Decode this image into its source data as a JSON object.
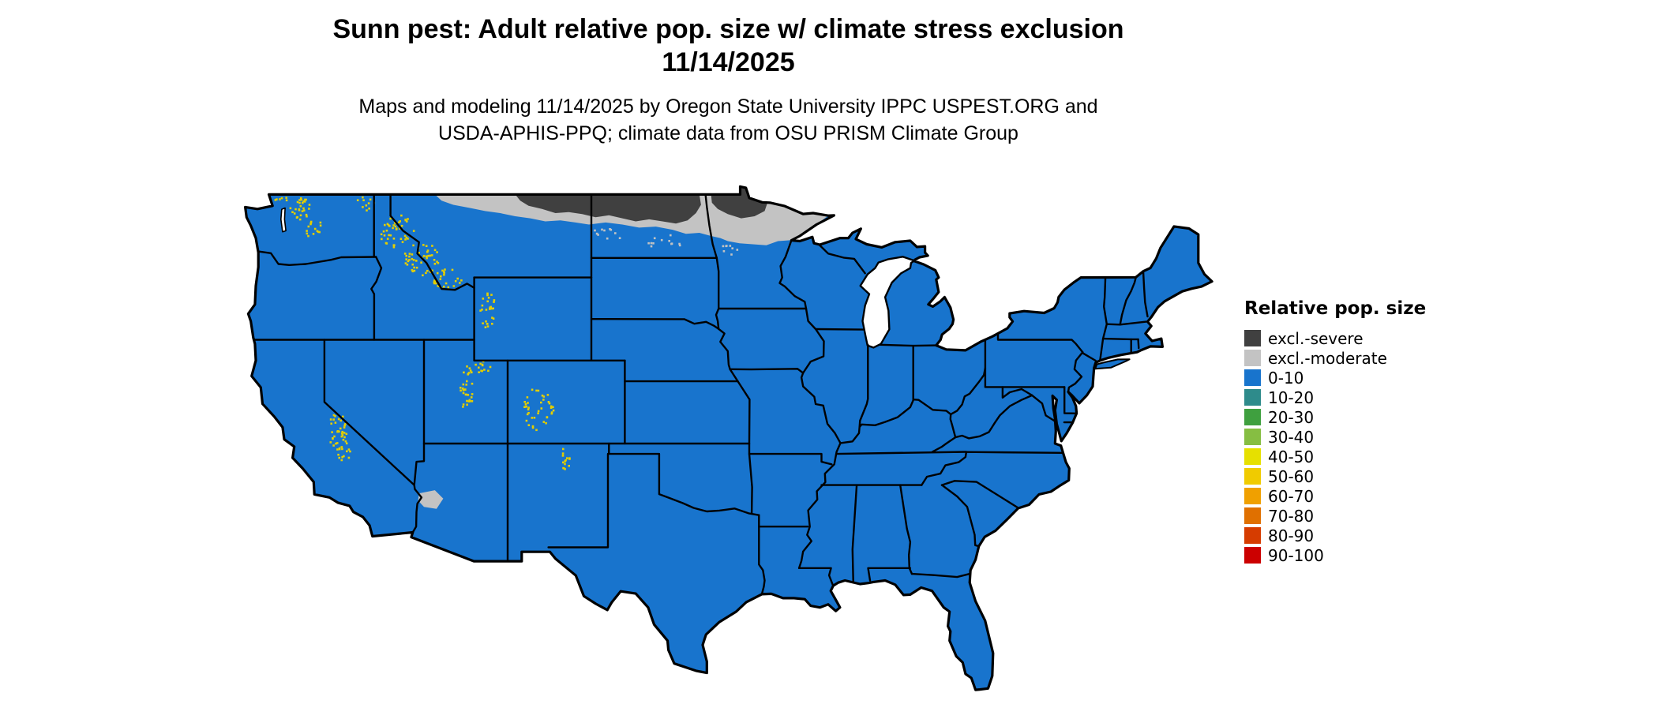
{
  "header": {
    "title": "Sunn pest: Adult relative pop. size w/ climate stress exclusion",
    "date": "11/14/2025",
    "subtitle_line1": "Maps and modeling 11/14/2025 by Oregon State University IPPC USPEST.ORG and",
    "subtitle_line2": "USDA-APHIS-PPQ; climate data from OSU PRISM Climate Group"
  },
  "legend": {
    "title": "Relative pop. size",
    "items": [
      {
        "label": "excl.-severe",
        "color": "#404040"
      },
      {
        "label": "excl.-moderate",
        "color": "#C3C3C3"
      },
      {
        "label": "0-10",
        "color": "#1874CD"
      },
      {
        "label": "10-20",
        "color": "#2E8B8B"
      },
      {
        "label": "20-30",
        "color": "#3FA03F"
      },
      {
        "label": "30-40",
        "color": "#86BE42"
      },
      {
        "label": "40-50",
        "color": "#E6E000"
      },
      {
        "label": "50-60",
        "color": "#F0CB00"
      },
      {
        "label": "60-70",
        "color": "#F0A000"
      },
      {
        "label": "70-80",
        "color": "#E07000"
      },
      {
        "label": "80-90",
        "color": "#D63C00"
      },
      {
        "label": "90-100",
        "color": "#CC0000"
      }
    ]
  },
  "map": {
    "region": "Continental United States",
    "base_fill": "#1874CD",
    "border_color": "#000000",
    "water_color": "#FFFFFF",
    "exclusion_severe_color": "#404040",
    "exclusion_moderate_color": "#C3C3C3",
    "mountain_speckle_color": "#E3CE00"
  }
}
